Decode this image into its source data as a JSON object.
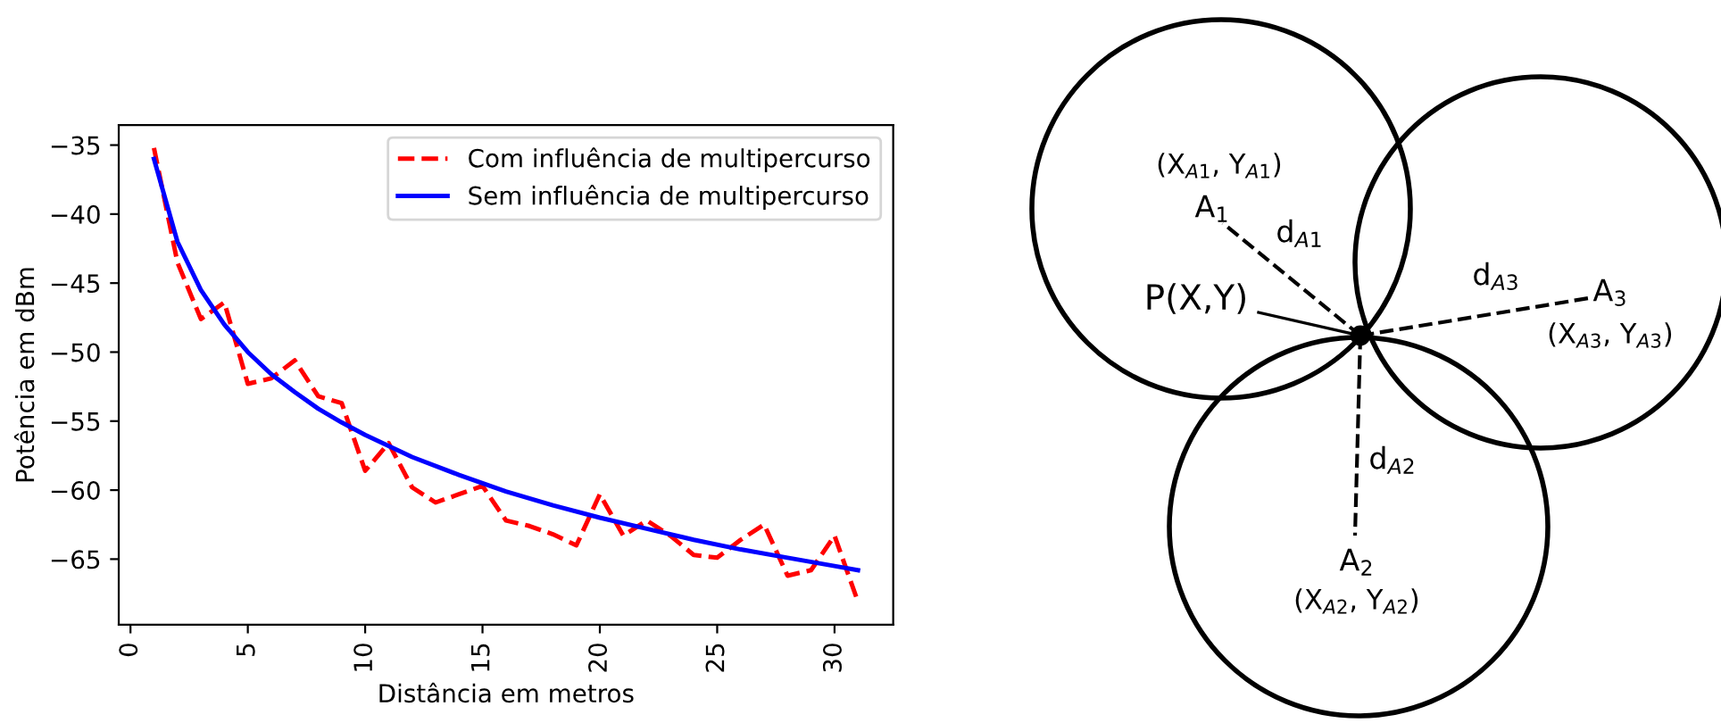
{
  "chart_data": [
    {
      "type": "line",
      "xlabel": "Distância em metros",
      "ylabel": "Potência em dBm",
      "xlim": [
        -0.5,
        32.5
      ],
      "ylim": [
        -69.75,
        -33.55
      ],
      "xticks": [
        0,
        5,
        10,
        15,
        20,
        25,
        30
      ],
      "yticks": [
        {
          "value": -35,
          "label": "−35"
        },
        {
          "value": -40,
          "label": "−40"
        },
        {
          "value": -45,
          "label": "−45"
        },
        {
          "value": -50,
          "label": "−50"
        },
        {
          "value": -55,
          "label": "−55"
        },
        {
          "value": -60,
          "label": "−60"
        },
        {
          "value": -65,
          "label": "−65"
        }
      ],
      "legend": "top right",
      "grid": false,
      "series": [
        {
          "name": "Com influência de multipercurso",
          "color": "#ff0000",
          "line_style": "dashed",
          "x": [
            1,
            2,
            3,
            4,
            5,
            6,
            7,
            8,
            9,
            10,
            11,
            12,
            13,
            14,
            15,
            16,
            17,
            18,
            19,
            20,
            21,
            22,
            23,
            24,
            25,
            26,
            27,
            28,
            29,
            30,
            31
          ],
          "values": [
            -35.2,
            -43.5,
            -47.6,
            -46.4,
            -52.3,
            -51.9,
            -50.6,
            -53.2,
            -53.7,
            -58.6,
            -56.6,
            -59.8,
            -60.9,
            -60.3,
            -59.7,
            -62.2,
            -62.6,
            -63.2,
            -64.0,
            -60.3,
            -63.3,
            -62.2,
            -63.3,
            -64.7,
            -64.9,
            -63.6,
            -62.5,
            -66.2,
            -65.8,
            -63.3,
            -68.1
          ]
        },
        {
          "name": "Sem influência de multipercurso",
          "color": "#0000ff",
          "line_style": "solid",
          "x": [
            1,
            2,
            3,
            4,
            5,
            6,
            7,
            8,
            9,
            10,
            12,
            14,
            16,
            18,
            20,
            22,
            24,
            26,
            28,
            30,
            31
          ],
          "values": [
            -36,
            -42,
            -45.5,
            -48,
            -50,
            -51.6,
            -52.9,
            -54.1,
            -55.1,
            -56,
            -57.6,
            -58.9,
            -60.1,
            -61.1,
            -62,
            -62.8,
            -63.6,
            -64.3,
            -64.9,
            -65.5,
            -65.8
          ]
        }
      ]
    },
    {
      "type": "other",
      "annotations": [
        "(X$_{A1}$, Y$_{A1}$)",
        "A$_{1}$",
        "d$_{A1}$",
        "P(X,Y)",
        "d$_{A3}$",
        "A$_{3}$",
        "(X$_{A3}$, Y$_{A3}$)",
        "d$_{A2}$",
        "A$_{2}$",
        "(X$_{A2}$, Y$_{A2}$)"
      ]
    }
  ]
}
